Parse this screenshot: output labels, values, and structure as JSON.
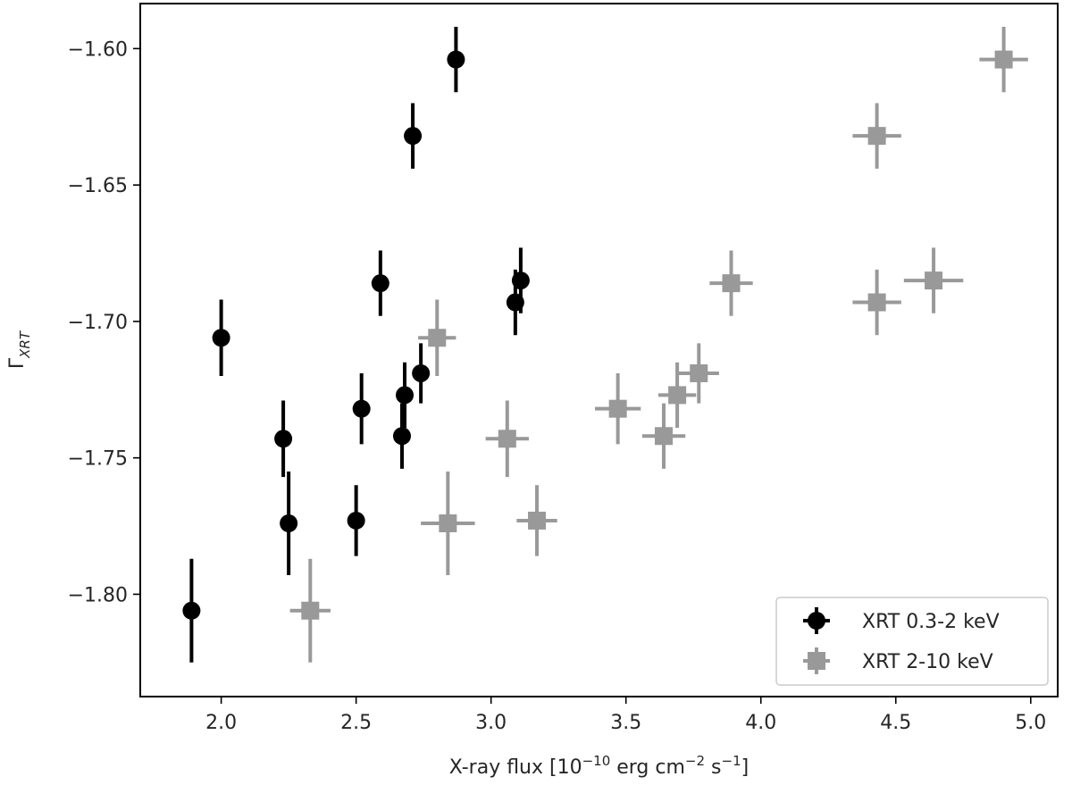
{
  "chart_data": {
    "type": "scatter",
    "xlabel": {
      "prefix": "X-ray flux [10",
      "exp1": "−10",
      "mid": " erg cm",
      "exp2": "−2",
      "mid2": " s",
      "exp3": "−1",
      "suffix": "]"
    },
    "ylabel": {
      "main": "Γ",
      "sub": "XRT"
    },
    "xlim": [
      1.7,
      5.1
    ],
    "ylim": [
      -1.8375,
      -1.5835
    ],
    "xticks": [
      {
        "value": 2.0,
        "label": "2.0"
      },
      {
        "value": 2.5,
        "label": "2.5"
      },
      {
        "value": 3.0,
        "label": "3.0"
      },
      {
        "value": 3.5,
        "label": "3.5"
      },
      {
        "value": 4.0,
        "label": "4.0"
      },
      {
        "value": 4.5,
        "label": "4.5"
      },
      {
        "value": 5.0,
        "label": "5.0"
      }
    ],
    "yticks": [
      {
        "value": -1.6,
        "label": "−1.60"
      },
      {
        "value": -1.65,
        "label": "−1.65"
      },
      {
        "value": -1.7,
        "label": "−1.70"
      },
      {
        "value": -1.75,
        "label": "−1.75"
      },
      {
        "value": -1.8,
        "label": "−1.80"
      }
    ],
    "legend_position": "bottom-right",
    "series": [
      {
        "name": "XRT 0.3-2 keV",
        "color": "#000000",
        "marker": "circle",
        "points": [
          {
            "x": 1.89,
            "y": -1.806,
            "xerr": 0.0,
            "yerr": 0.019
          },
          {
            "x": 2.0,
            "y": -1.706,
            "xerr": 0.0,
            "yerr": 0.014
          },
          {
            "x": 2.23,
            "y": -1.743,
            "xerr": 0.0,
            "yerr": 0.014
          },
          {
            "x": 2.25,
            "y": -1.774,
            "xerr": 0.0,
            "yerr": 0.019
          },
          {
            "x": 2.5,
            "y": -1.773,
            "xerr": 0.0,
            "yerr": 0.013
          },
          {
            "x": 2.52,
            "y": -1.732,
            "xerr": 0.0,
            "yerr": 0.013
          },
          {
            "x": 2.59,
            "y": -1.686,
            "xerr": 0.0,
            "yerr": 0.012
          },
          {
            "x": 2.67,
            "y": -1.742,
            "xerr": 0.0,
            "yerr": 0.012
          },
          {
            "x": 2.68,
            "y": -1.727,
            "xerr": 0.0,
            "yerr": 0.012
          },
          {
            "x": 2.71,
            "y": -1.632,
            "xerr": 0.0,
            "yerr": 0.012
          },
          {
            "x": 2.74,
            "y": -1.719,
            "xerr": 0.0,
            "yerr": 0.011
          },
          {
            "x": 2.87,
            "y": -1.604,
            "xerr": 0.0,
            "yerr": 0.012
          },
          {
            "x": 3.09,
            "y": -1.693,
            "xerr": 0.0,
            "yerr": 0.012
          },
          {
            "x": 3.11,
            "y": -1.685,
            "xerr": 0.0,
            "yerr": 0.012
          }
        ]
      },
      {
        "name": "XRT 2-10 keV",
        "color": "#999999",
        "marker": "square",
        "points": [
          {
            "x": 2.33,
            "y": -1.806,
            "xerr": 0.075,
            "yerr": 0.019
          },
          {
            "x": 2.8,
            "y": -1.706,
            "xerr": 0.07,
            "yerr": 0.014
          },
          {
            "x": 2.84,
            "y": -1.774,
            "xerr": 0.1,
            "yerr": 0.019
          },
          {
            "x": 3.06,
            "y": -1.743,
            "xerr": 0.08,
            "yerr": 0.014
          },
          {
            "x": 3.17,
            "y": -1.773,
            "xerr": 0.075,
            "yerr": 0.013
          },
          {
            "x": 3.47,
            "y": -1.732,
            "xerr": 0.085,
            "yerr": 0.013
          },
          {
            "x": 3.64,
            "y": -1.742,
            "xerr": 0.08,
            "yerr": 0.012
          },
          {
            "x": 3.69,
            "y": -1.727,
            "xerr": 0.07,
            "yerr": 0.012
          },
          {
            "x": 3.77,
            "y": -1.719,
            "xerr": 0.075,
            "yerr": 0.011
          },
          {
            "x": 3.89,
            "y": -1.686,
            "xerr": 0.08,
            "yerr": 0.012
          },
          {
            "x": 4.43,
            "y": -1.632,
            "xerr": 0.09,
            "yerr": 0.012
          },
          {
            "x": 4.43,
            "y": -1.693,
            "xerr": 0.09,
            "yerr": 0.012
          },
          {
            "x": 4.64,
            "y": -1.685,
            "xerr": 0.11,
            "yerr": 0.012
          },
          {
            "x": 4.9,
            "y": -1.604,
            "xerr": 0.09,
            "yerr": 0.012
          }
        ]
      }
    ]
  }
}
